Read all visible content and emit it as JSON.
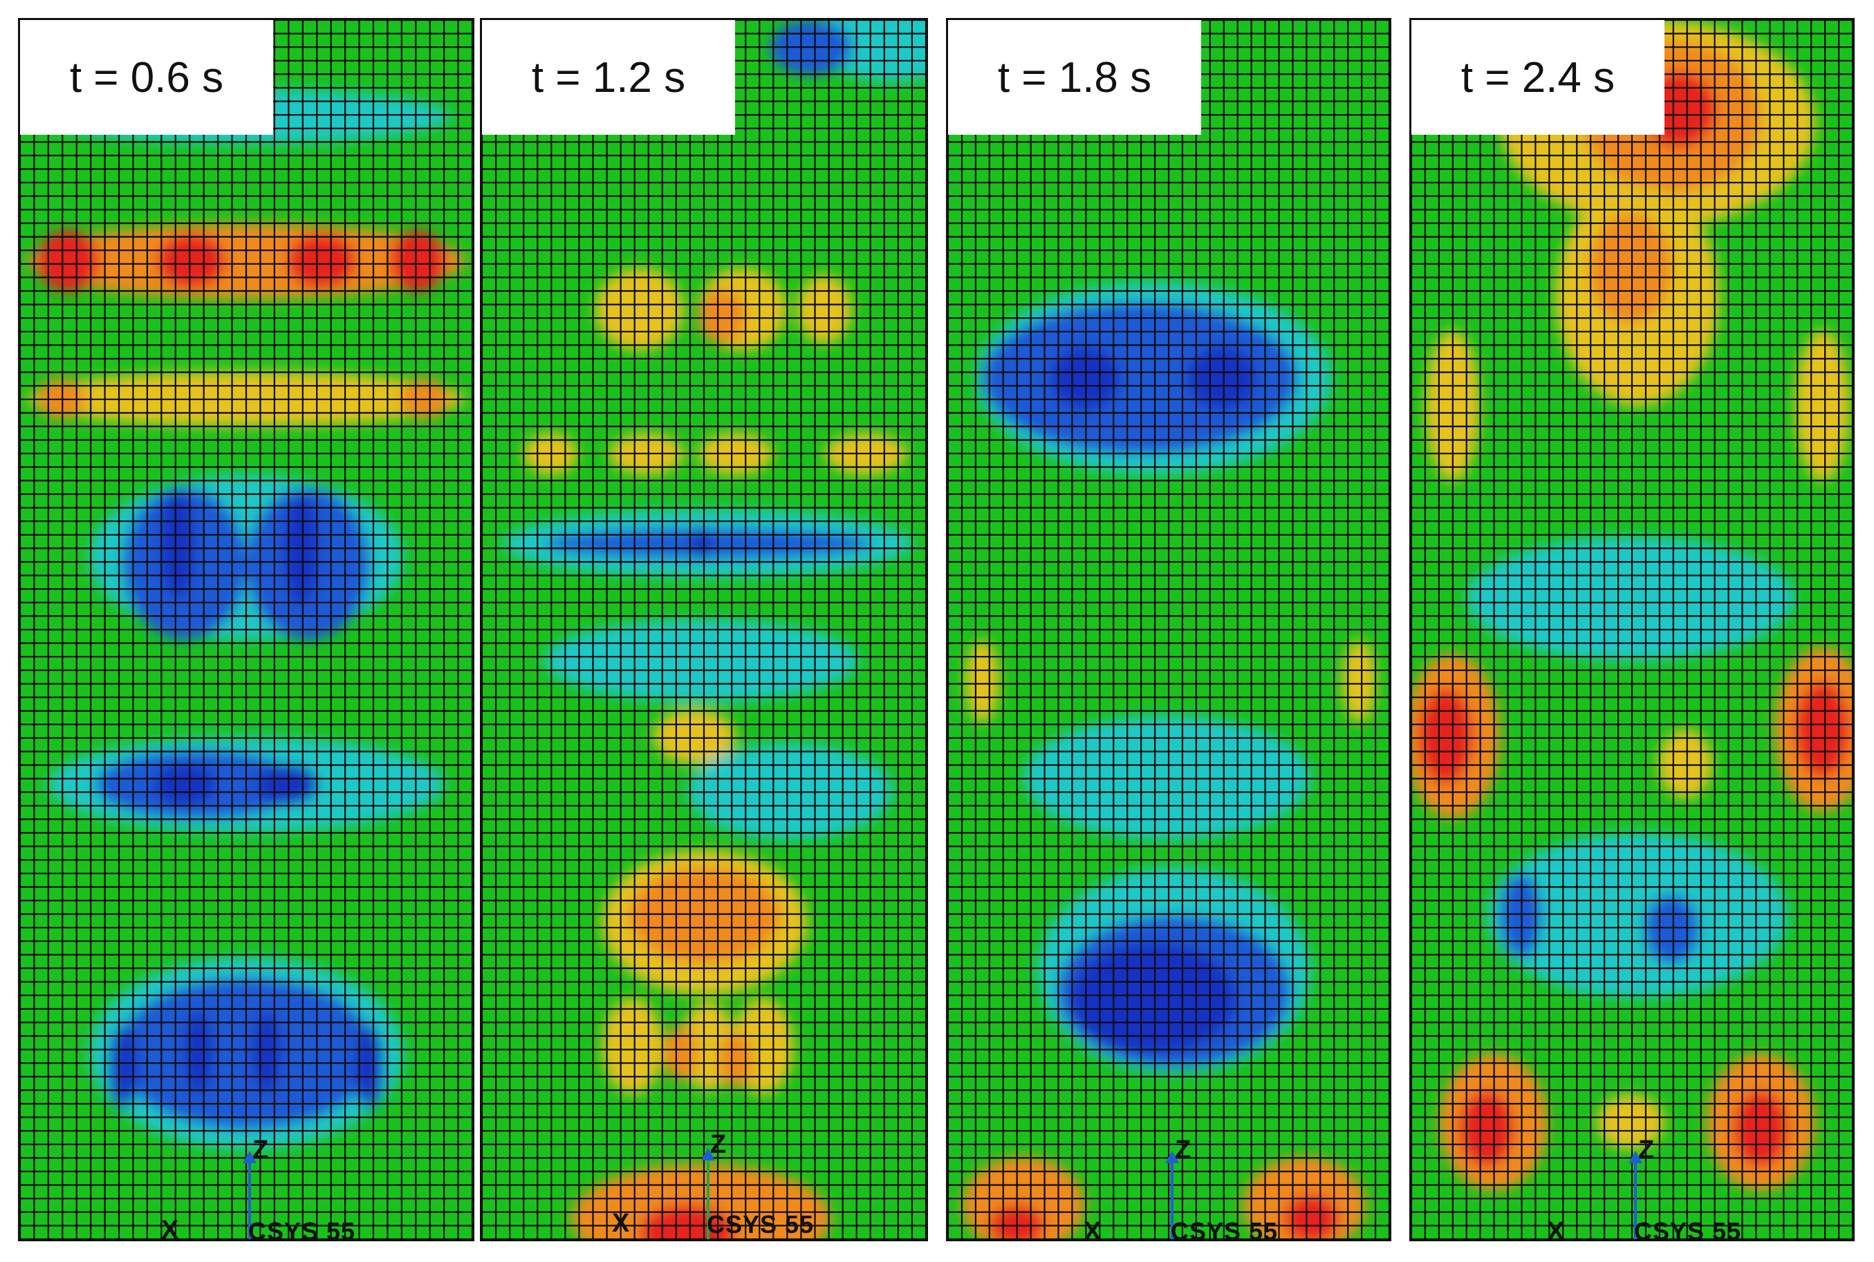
{
  "panels": [
    {
      "label": "t = 0.6 s",
      "axis_z": "Z",
      "axis_x": "X",
      "csys": "CSYS 55"
    },
    {
      "label": "t = 1.2 s",
      "axis_z": "Z",
      "axis_x": "X",
      "csys": "CSYS 55"
    },
    {
      "label": "t = 1.8 s",
      "axis_z": "Z",
      "axis_x": "X",
      "csys": "CSYS 55"
    },
    {
      "label": "t = 2.4 s",
      "axis_z": "Z",
      "axis_x": "X",
      "csys": "CSYS 55"
    }
  ],
  "colors": {
    "green": "#19c21b",
    "cyan": "#1fc9c6",
    "blue": "#1e5ad6",
    "deep_blue": "#1630c4",
    "yellow": "#e6c21a",
    "orange": "#f08a1c",
    "red": "#e8241c",
    "mesh": "#0a0a0a"
  }
}
